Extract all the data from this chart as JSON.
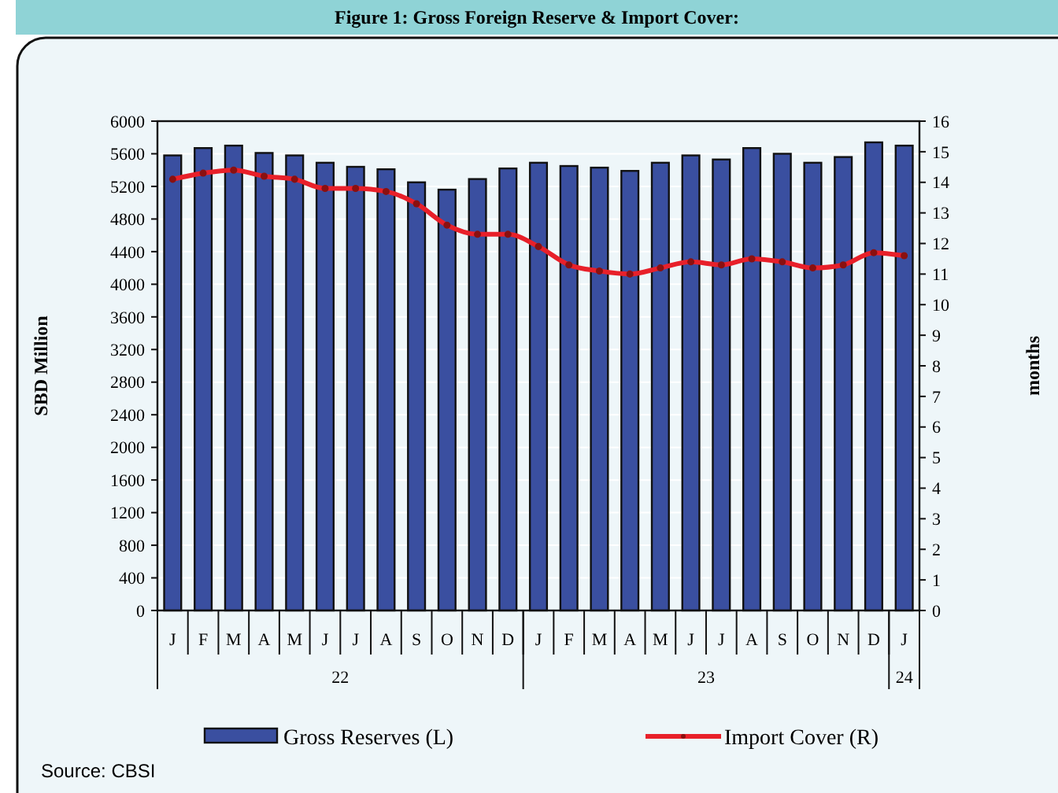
{
  "chart_data": {
    "type": "bar",
    "title": "Figure 1: Gross Foreign Reserve & Import Cover:",
    "ylabel": "SBD Million",
    "y2label": "months",
    "categories": [
      "J",
      "F",
      "M",
      "A",
      "M",
      "J",
      "J",
      "A",
      "S",
      "O",
      "N",
      "D",
      "J",
      "F",
      "M",
      "A",
      "M",
      "J",
      "J",
      "A",
      "S",
      "O",
      "N",
      "D",
      "J"
    ],
    "series": [
      {
        "name": "Gross Reserves (L)",
        "color": "#3a4fa0",
        "values": [
          5580,
          5670,
          5700,
          5610,
          5580,
          5490,
          5440,
          5410,
          5250,
          5160,
          5290,
          5420,
          5490,
          5450,
          5430,
          5390,
          5490,
          5580,
          5530,
          5670,
          5600,
          5490,
          5560,
          5740,
          5700
        ]
      },
      {
        "name": "Import Cover (R)",
        "type": "line",
        "axis": "y2",
        "color": "#e8202a",
        "marker": "circle",
        "values": [
          14.1,
          14.3,
          14.4,
          14.2,
          14.1,
          13.8,
          13.8,
          13.7,
          13.3,
          12.6,
          12.3,
          12.3,
          11.9,
          11.3,
          11.1,
          11.0,
          11.2,
          11.4,
          11.3,
          11.5,
          11.4,
          11.2,
          11.3,
          11.7,
          11.6
        ]
      }
    ],
    "ylim": [
      0,
      6000
    ],
    "yticks": [
      0,
      400,
      800,
      1200,
      1600,
      2000,
      2400,
      2800,
      3200,
      3600,
      4000,
      4400,
      4800,
      5200,
      5600,
      6000
    ],
    "y2lim": [
      0,
      16
    ],
    "y2ticks": [
      0,
      1,
      2,
      3,
      4,
      5,
      6,
      7,
      8,
      9,
      10,
      11,
      12,
      13,
      14,
      15,
      16
    ],
    "grid": "y",
    "legend": "bottom",
    "annotations": [
      "22",
      "23",
      "24",
      "Source: CBSI"
    ]
  }
}
